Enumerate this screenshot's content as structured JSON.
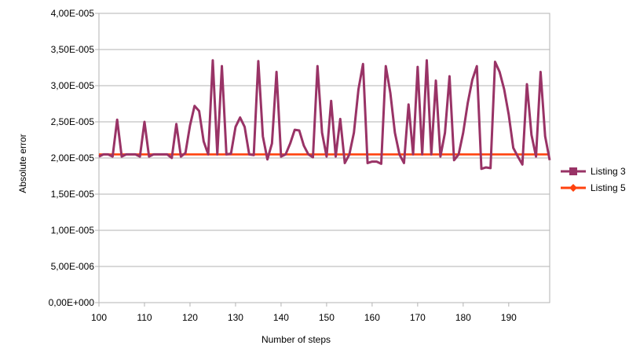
{
  "chart_data": {
    "type": "line",
    "title": "",
    "xlabel": "Number of steps",
    "ylabel": "Absolute error",
    "xlim": [
      100,
      199
    ],
    "ylim": [
      0,
      4e-05
    ],
    "x_ticks": [
      100,
      110,
      120,
      130,
      140,
      150,
      160,
      170,
      180,
      190
    ],
    "x_tick_labels": [
      "100",
      "110",
      "120",
      "130",
      "140",
      "150",
      "160",
      "170",
      "180",
      "190"
    ],
    "y_ticks": [
      0,
      5e-06,
      1e-05,
      1.5e-05,
      2e-05,
      2.5e-05,
      3e-05,
      3.5e-05,
      4e-05
    ],
    "y_tick_labels": [
      "0,00E+000",
      "5,00E-006",
      "1,00E-005",
      "1,50E-005",
      "2,00E-005",
      "2,50E-005",
      "3,00E-005",
      "3,50E-005",
      "4,00E-005"
    ],
    "grid": "horizontal",
    "legend_position": "right",
    "x": [
      100,
      101,
      102,
      103,
      104,
      105,
      106,
      107,
      108,
      109,
      110,
      111,
      112,
      113,
      114,
      115,
      116,
      117,
      118,
      119,
      120,
      121,
      122,
      123,
      124,
      125,
      126,
      127,
      128,
      129,
      130,
      131,
      132,
      133,
      134,
      135,
      136,
      137,
      138,
      139,
      140,
      141,
      142,
      143,
      144,
      145,
      146,
      147,
      148,
      149,
      150,
      151,
      152,
      153,
      154,
      155,
      156,
      157,
      158,
      159,
      160,
      161,
      162,
      163,
      164,
      165,
      166,
      167,
      168,
      169,
      170,
      171,
      172,
      173,
      174,
      175,
      176,
      177,
      178,
      179,
      180,
      181,
      182,
      183,
      184,
      185,
      186,
      187,
      188,
      189,
      190,
      191,
      192,
      193,
      194,
      195,
      196,
      197,
      198,
      199
    ],
    "series": [
      {
        "name": "Listing 3",
        "color": "#993366",
        "marker": "square",
        "values": [
          2.02e-05,
          2.05e-05,
          2.05e-05,
          2.02e-05,
          2.53e-05,
          2.02e-05,
          2.05e-05,
          2.05e-05,
          2.05e-05,
          2.02e-05,
          2.5e-05,
          2.02e-05,
          2.05e-05,
          2.05e-05,
          2.05e-05,
          2.05e-05,
          2e-05,
          2.47e-05,
          2.02e-05,
          2.07e-05,
          2.45e-05,
          2.72e-05,
          2.65e-05,
          2.23e-05,
          2.05e-05,
          3.35e-05,
          2.05e-05,
          3.27e-05,
          2.05e-05,
          2.06e-05,
          2.43e-05,
          2.56e-05,
          2.43e-05,
          2.05e-05,
          2.04e-05,
          3.34e-05,
          2.3e-05,
          1.98e-05,
          2.2e-05,
          3.19e-05,
          2.02e-05,
          2.05e-05,
          2.2e-05,
          2.39e-05,
          2.38e-05,
          2.17e-05,
          2.05e-05,
          2.01e-05,
          3.27e-05,
          2.35e-05,
          2.02e-05,
          2.79e-05,
          2.02e-05,
          2.54e-05,
          1.93e-05,
          2.05e-05,
          2.35e-05,
          2.95e-05,
          3.3e-05,
          1.93e-05,
          1.95e-05,
          1.95e-05,
          1.92e-05,
          3.27e-05,
          2.9e-05,
          2.35e-05,
          2.05e-05,
          1.93e-05,
          2.74e-05,
          2.05e-05,
          3.26e-05,
          2.05e-05,
          3.35e-05,
          2.05e-05,
          3.07e-05,
          2.02e-05,
          2.35e-05,
          3.13e-05,
          1.97e-05,
          2.05e-05,
          2.35e-05,
          2.76e-05,
          3.08e-05,
          3.27e-05,
          1.85e-05,
          1.87e-05,
          1.86e-05,
          3.33e-05,
          3.19e-05,
          2.95e-05,
          2.6e-05,
          2.14e-05,
          2.02e-05,
          1.91e-05,
          3.02e-05,
          2.32e-05,
          2.02e-05,
          3.19e-05,
          2.3e-05,
          1.97e-05
        ]
      },
      {
        "name": "Listing 5",
        "color": "#ff420e",
        "marker": "diamond",
        "values": [
          2.05e-05,
          2.05e-05,
          2.05e-05,
          2.05e-05,
          2.05e-05,
          2.05e-05,
          2.05e-05,
          2.05e-05,
          2.05e-05,
          2.05e-05,
          2.05e-05,
          2.05e-05,
          2.05e-05,
          2.05e-05,
          2.05e-05,
          2.05e-05,
          2.05e-05,
          2.05e-05,
          2.05e-05,
          2.05e-05,
          2.05e-05,
          2.05e-05,
          2.05e-05,
          2.05e-05,
          2.05e-05,
          2.05e-05,
          2.05e-05,
          2.05e-05,
          2.05e-05,
          2.05e-05,
          2.05e-05,
          2.05e-05,
          2.05e-05,
          2.05e-05,
          2.05e-05,
          2.05e-05,
          2.05e-05,
          2.05e-05,
          2.05e-05,
          2.05e-05,
          2.05e-05,
          2.05e-05,
          2.05e-05,
          2.05e-05,
          2.05e-05,
          2.05e-05,
          2.05e-05,
          2.05e-05,
          2.05e-05,
          2.05e-05,
          2.05e-05,
          2.05e-05,
          2.05e-05,
          2.05e-05,
          2.05e-05,
          2.05e-05,
          2.05e-05,
          2.05e-05,
          2.05e-05,
          2.05e-05,
          2.05e-05,
          2.05e-05,
          2.05e-05,
          2.05e-05,
          2.05e-05,
          2.05e-05,
          2.05e-05,
          2.05e-05,
          2.05e-05,
          2.05e-05,
          2.05e-05,
          2.05e-05,
          2.05e-05,
          2.05e-05,
          2.05e-05,
          2.05e-05,
          2.05e-05,
          2.05e-05,
          2.05e-05,
          2.05e-05,
          2.05e-05,
          2.05e-05,
          2.05e-05,
          2.05e-05,
          2.05e-05,
          2.05e-05,
          2.05e-05,
          2.05e-05,
          2.05e-05,
          2.05e-05,
          2.05e-05,
          2.05e-05,
          2.05e-05,
          2.05e-05,
          2.05e-05,
          2.05e-05,
          2.05e-05,
          2.05e-05,
          2.05e-05,
          2.05e-05
        ]
      }
    ]
  }
}
